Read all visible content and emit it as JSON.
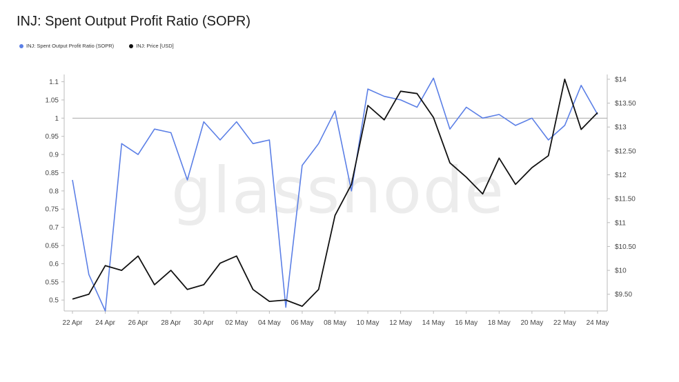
{
  "title": "INJ: Spent Output Profit Ratio (SOPR)",
  "watermark": "glassnode",
  "legend": [
    {
      "label": "INJ: Spent Output Profit Ratio (SOPR)",
      "color": "#5b7fe6"
    },
    {
      "label": "INJ: Price [USD]",
      "color": "#111111"
    }
  ],
  "chart_data": {
    "type": "line",
    "title": "INJ: Spent Output Profit Ratio (SOPR)",
    "x": [
      "22 Apr",
      "23 Apr",
      "24 Apr",
      "25 Apr",
      "26 Apr",
      "27 Apr",
      "28 Apr",
      "29 Apr",
      "30 Apr",
      "01 May",
      "02 May",
      "03 May",
      "04 May",
      "05 May",
      "06 May",
      "07 May",
      "08 May",
      "09 May",
      "10 May",
      "11 May",
      "12 May",
      "13 May",
      "14 May",
      "15 May",
      "16 May",
      "17 May",
      "18 May",
      "19 May",
      "20 May",
      "21 May",
      "22 May",
      "23 May",
      "24 May"
    ],
    "x_tick_labels": [
      "22 Apr",
      "24 Apr",
      "26 Apr",
      "28 Apr",
      "30 Apr",
      "02 May",
      "04 May",
      "06 May",
      "08 May",
      "10 May",
      "12 May",
      "14 May",
      "16 May",
      "18 May",
      "20 May",
      "22 May",
      "24 May"
    ],
    "series": [
      {
        "name": "INJ: Spent Output Profit Ratio (SOPR)",
        "axis": "left",
        "color": "#5b7fe6",
        "values": [
          0.83,
          0.57,
          0.47,
          0.93,
          0.9,
          0.97,
          0.96,
          0.83,
          0.99,
          0.94,
          0.99,
          0.93,
          0.94,
          0.48,
          0.87,
          0.93,
          1.02,
          0.8,
          1.08,
          1.06,
          1.05,
          1.03,
          1.11,
          0.97,
          1.03,
          1.0,
          1.01,
          0.98,
          1.0,
          0.94,
          0.98,
          1.09,
          1.01
        ]
      },
      {
        "name": "INJ: Price [USD]",
        "axis": "right",
        "color": "#111111",
        "values": [
          9.4,
          9.5,
          10.1,
          10.0,
          10.3,
          9.7,
          10.0,
          9.6,
          9.7,
          10.15,
          10.3,
          9.6,
          9.35,
          9.38,
          9.25,
          9.6,
          11.15,
          11.8,
          13.45,
          13.15,
          13.75,
          13.7,
          13.2,
          12.25,
          11.95,
          11.6,
          12.35,
          11.8,
          12.15,
          12.4,
          14.0,
          12.95,
          13.3
        ]
      }
    ],
    "ylim_left": [
      0.47,
      1.12
    ],
    "ylim_right": [
      9.15,
      14.1
    ],
    "y_ticks_left": [
      "0.5",
      "0.55",
      "0.6",
      "0.65",
      "0.7",
      "0.75",
      "0.8",
      "0.85",
      "0.9",
      "0.95",
      "1",
      "1.05",
      "1.1"
    ],
    "y_ticks_right": [
      "$9.50",
      "$10",
      "$10.50",
      "$11",
      "$11.50",
      "$12",
      "$12.50",
      "$13",
      "$13.50",
      "$14"
    ],
    "reference_line": 1,
    "grid": false,
    "legend_position": "top-left"
  }
}
